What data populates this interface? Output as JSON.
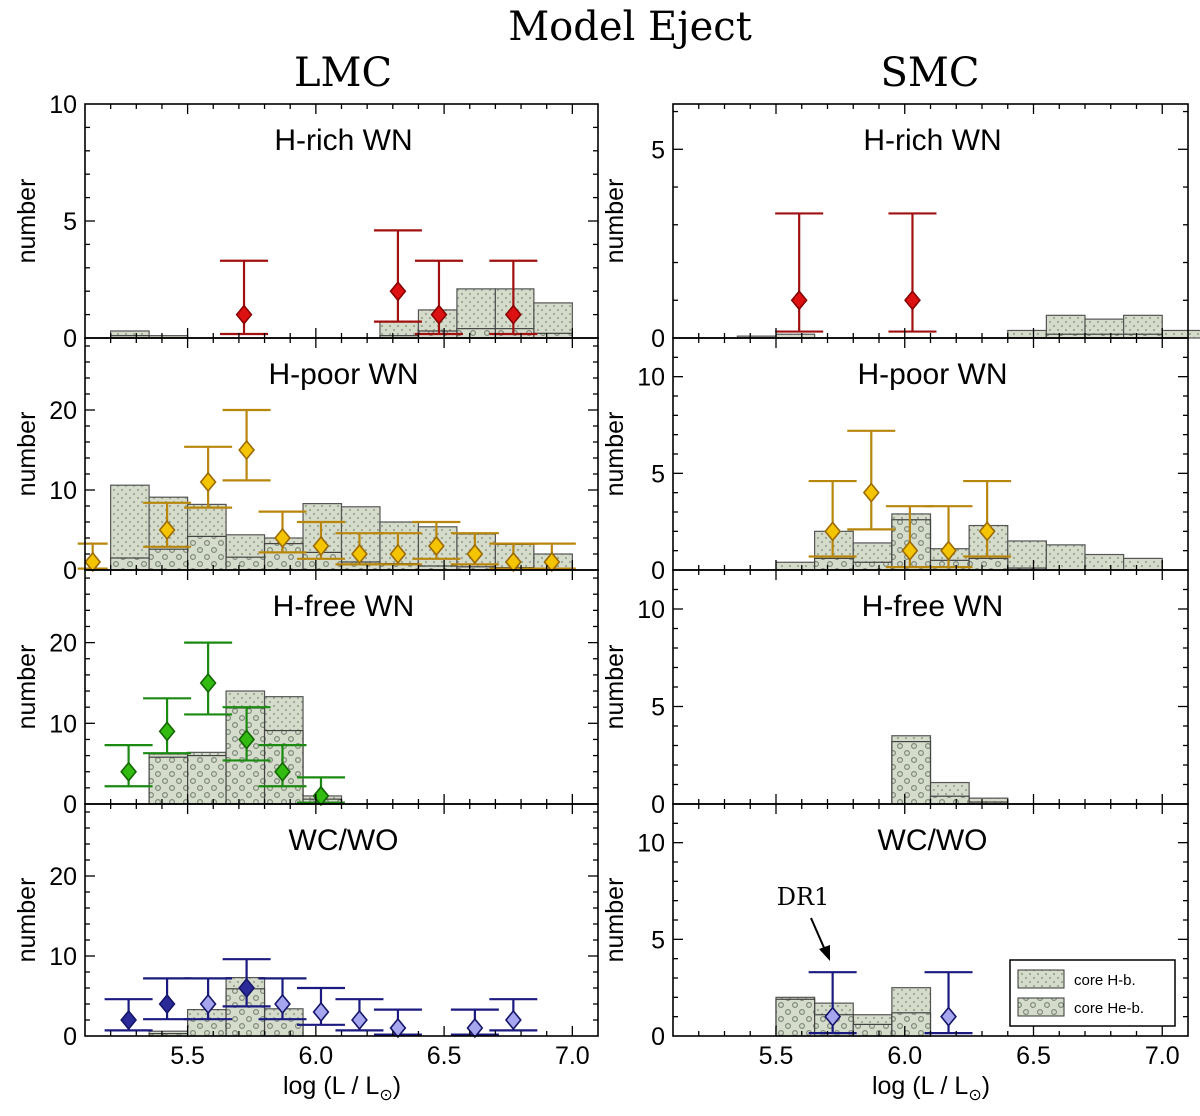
{
  "figure": {
    "title": "Model Eject",
    "column_titles": [
      "LMC",
      "SMC"
    ],
    "xlabel": "log (L / L",
    "xlabel_sub": "⊙",
    "xlabel_end": ")",
    "ylabel": "number",
    "legend": [
      "core H-b.",
      "core He-b."
    ],
    "annotation": "DR1"
  },
  "colors": {
    "hrich": "#dd1111",
    "hrich_edge": "#880000",
    "hrich_err": "#a01010",
    "hpoor": "#f5c400",
    "hpoor_edge": "#9a6a00",
    "hpoor_err": "#b8860b",
    "hfree": "#33bb11",
    "hfree_edge": "#116600",
    "hfree_err": "#1a8a10",
    "wc_dark": "#2a2a99",
    "wc_light": "#a6a6ee",
    "wc_edge": "#15156a",
    "wc_err": "#1a1a80",
    "hist_fill": "#d6dccb",
    "hist_dots": "#8a9a88"
  },
  "chart_data": [
    {
      "type": "bar",
      "galaxy": "LMC",
      "panel": "H-rich WN",
      "title": "H-rich WN",
      "xlim": [
        5.1,
        7.1
      ],
      "ylim": [
        0,
        10
      ],
      "yticks": [
        0,
        5,
        10
      ],
      "xticks": [
        5.5,
        6.0,
        6.5,
        7.0
      ],
      "xticklabels": [
        "5.5",
        "6.0",
        "6.5",
        "7.0"
      ],
      "bin_width": 0.15,
      "hist_H": [
        [
          5.2,
          0.3
        ],
        [
          5.35,
          0.1
        ],
        [
          6.25,
          0.7
        ],
        [
          6.4,
          1.2
        ],
        [
          6.55,
          2.1
        ],
        [
          6.7,
          2.1
        ],
        [
          6.85,
          1.5
        ]
      ],
      "hist_He": [
        [
          5.2,
          0.1
        ],
        [
          6.25,
          0.1
        ],
        [
          6.4,
          0.3
        ],
        [
          6.55,
          0.4
        ],
        [
          6.7,
          0.4
        ],
        [
          6.85,
          0.2
        ]
      ],
      "points": [
        {
          "x": 5.72,
          "y": 1,
          "lo": 0.17,
          "hi": 3.3,
          "style": "hrich"
        },
        {
          "x": 6.32,
          "y": 2,
          "lo": 0.7,
          "hi": 4.6,
          "style": "hrich"
        },
        {
          "x": 6.48,
          "y": 1,
          "lo": 0.17,
          "hi": 3.3,
          "style": "hrich"
        },
        {
          "x": 6.77,
          "y": 1,
          "lo": 0.17,
          "hi": 3.3,
          "style": "hrich"
        }
      ]
    },
    {
      "type": "bar",
      "galaxy": "SMC",
      "panel": "H-rich WN",
      "title": "H-rich WN",
      "xlim": [
        5.1,
        7.1
      ],
      "ylim": [
        0,
        6.2
      ],
      "yticks": [
        0,
        5
      ],
      "xticks": [
        5.5,
        6.0,
        6.5,
        7.0
      ],
      "xticklabels": [
        "5.5",
        "6.0",
        "6.5",
        "7.0"
      ],
      "bin_width": 0.15,
      "hist_H": [
        [
          5.35,
          0.05
        ],
        [
          5.5,
          0.1
        ],
        [
          6.4,
          0.2
        ],
        [
          6.55,
          0.6
        ],
        [
          6.7,
          0.5
        ],
        [
          6.85,
          0.6
        ],
        [
          7.0,
          0.2
        ]
      ],
      "hist_He": [
        [
          6.55,
          0.1
        ],
        [
          6.7,
          0.1
        ],
        [
          6.85,
          0.1
        ]
      ],
      "points": [
        {
          "x": 5.59,
          "y": 1,
          "lo": 0.17,
          "hi": 3.3,
          "style": "hrich"
        },
        {
          "x": 6.03,
          "y": 1,
          "lo": 0.17,
          "hi": 3.3,
          "style": "hrich"
        }
      ]
    },
    {
      "type": "bar",
      "galaxy": "LMC",
      "panel": "H-poor WN",
      "title": "H-poor WN",
      "xlim": [
        5.1,
        7.1
      ],
      "ylim": [
        0,
        29
      ],
      "yticks": [
        0,
        10,
        20
      ],
      "xticks": [
        5.5,
        6.0,
        6.5,
        7.0
      ],
      "xticklabels": [
        "5.5",
        "6.0",
        "6.5",
        "7.0"
      ],
      "bin_width": 0.15,
      "hist_H": [
        [
          5.2,
          10.6
        ],
        [
          5.35,
          9.1
        ],
        [
          5.5,
          8.2
        ],
        [
          5.65,
          4.4
        ],
        [
          5.8,
          4.0
        ],
        [
          5.95,
          8.3
        ],
        [
          6.1,
          7.9
        ],
        [
          6.25,
          6.0
        ],
        [
          6.4,
          5.4
        ],
        [
          6.55,
          4.5
        ],
        [
          6.7,
          3.2
        ],
        [
          6.85,
          2.0
        ]
      ],
      "hist_He": [
        [
          5.2,
          1.5
        ],
        [
          5.35,
          2.6
        ],
        [
          5.5,
          4.2
        ],
        [
          5.65,
          1.6
        ],
        [
          5.8,
          3.3
        ],
        [
          5.95,
          2.2
        ],
        [
          6.1,
          1.0
        ],
        [
          6.25,
          0.8
        ],
        [
          6.4,
          0.5
        ],
        [
          6.55,
          0.4
        ],
        [
          6.7,
          0.3
        ],
        [
          6.85,
          0.2
        ]
      ],
      "points": [
        {
          "x": 5.13,
          "y": 1,
          "lo": 0.17,
          "hi": 3.3,
          "style": "hpoor",
          "capw": 30
        },
        {
          "x": 5.42,
          "y": 5,
          "lo": 2.9,
          "hi": 8.4,
          "style": "hpoor"
        },
        {
          "x": 5.58,
          "y": 11,
          "lo": 7.8,
          "hi": 15.4,
          "style": "hpoor"
        },
        {
          "x": 5.73,
          "y": 15,
          "lo": 11.2,
          "hi": 20.0,
          "style": "hpoor"
        },
        {
          "x": 5.87,
          "y": 4,
          "lo": 2.2,
          "hi": 7.3,
          "style": "hpoor"
        },
        {
          "x": 6.02,
          "y": 3,
          "lo": 1.4,
          "hi": 6.0,
          "style": "hpoor"
        },
        {
          "x": 6.17,
          "y": 2,
          "lo": 0.7,
          "hi": 4.6,
          "style": "hpoor"
        },
        {
          "x": 6.32,
          "y": 2,
          "lo": 0.7,
          "hi": 4.6,
          "style": "hpoor"
        },
        {
          "x": 6.47,
          "y": 3,
          "lo": 1.4,
          "hi": 6.0,
          "style": "hpoor"
        },
        {
          "x": 6.62,
          "y": 2,
          "lo": 0.7,
          "hi": 4.6,
          "style": "hpoor"
        },
        {
          "x": 6.77,
          "y": 1,
          "lo": 0.17,
          "hi": 3.3,
          "style": "hpoor"
        },
        {
          "x": 6.92,
          "y": 1,
          "lo": 0.17,
          "hi": 3.3,
          "style": "hpoor"
        }
      ]
    },
    {
      "type": "bar",
      "galaxy": "SMC",
      "panel": "H-poor WN",
      "title": "H-poor WN",
      "xlim": [
        5.1,
        7.1
      ],
      "ylim": [
        0,
        12
      ],
      "yticks": [
        0,
        5,
        10
      ],
      "xticks": [
        5.5,
        6.0,
        6.5,
        7.0
      ],
      "xticklabels": [
        "5.5",
        "6.0",
        "6.5",
        "7.0"
      ],
      "bin_width": 0.15,
      "hist_H": [
        [
          5.5,
          0.4
        ],
        [
          5.65,
          2.0
        ],
        [
          5.8,
          1.4
        ],
        [
          5.95,
          2.9
        ],
        [
          6.1,
          1.1
        ],
        [
          6.25,
          2.3
        ],
        [
          6.4,
          1.5
        ],
        [
          6.55,
          1.3
        ],
        [
          6.7,
          0.8
        ],
        [
          6.85,
          0.6
        ]
      ],
      "hist_He": [
        [
          5.65,
          0.6
        ],
        [
          5.8,
          0.4
        ],
        [
          5.95,
          2.6
        ],
        [
          6.1,
          0.5
        ],
        [
          6.25,
          0.6
        ],
        [
          6.4,
          0.1
        ]
      ],
      "points": [
        {
          "x": 5.72,
          "y": 2,
          "lo": 0.7,
          "hi": 4.6,
          "style": "hpoor"
        },
        {
          "x": 5.87,
          "y": 4,
          "lo": 2.1,
          "hi": 7.2,
          "style": "hpoor"
        },
        {
          "x": 6.02,
          "y": 1,
          "lo": 0.15,
          "hi": 3.3,
          "style": "hpoor"
        },
        {
          "x": 6.17,
          "y": 1,
          "lo": 0.15,
          "hi": 3.3,
          "style": "hpoor"
        },
        {
          "x": 6.32,
          "y": 2,
          "lo": 0.7,
          "hi": 4.6,
          "style": "hpoor"
        }
      ]
    },
    {
      "type": "bar",
      "galaxy": "LMC",
      "panel": "H-free WN",
      "title": "H-free WN",
      "xlim": [
        5.1,
        7.1
      ],
      "ylim": [
        0,
        29
      ],
      "yticks": [
        0,
        10,
        20
      ],
      "xticks": [
        5.5,
        6.0,
        6.5,
        7.0
      ],
      "xticklabels": [
        "5.5",
        "6.0",
        "6.5",
        "7.0"
      ],
      "bin_width": 0.15,
      "hist_H": [
        [
          5.35,
          6.2
        ],
        [
          5.5,
          6.4
        ],
        [
          5.65,
          14.0
        ],
        [
          5.8,
          13.3
        ],
        [
          5.95,
          1.0
        ]
      ],
      "hist_He": [
        [
          5.35,
          5.8
        ],
        [
          5.5,
          6.0
        ],
        [
          5.65,
          11.9
        ],
        [
          5.8,
          9.1
        ],
        [
          5.95,
          0.6
        ]
      ],
      "points": [
        {
          "x": 5.27,
          "y": 4,
          "lo": 2.2,
          "hi": 7.3,
          "style": "hfree"
        },
        {
          "x": 5.42,
          "y": 9,
          "lo": 6.3,
          "hi": 13.1,
          "style": "hfree"
        },
        {
          "x": 5.58,
          "y": 15,
          "lo": 11.1,
          "hi": 20.0,
          "style": "hfree"
        },
        {
          "x": 5.73,
          "y": 8,
          "lo": 5.4,
          "hi": 12.0,
          "style": "hfree"
        },
        {
          "x": 5.87,
          "y": 4,
          "lo": 2.2,
          "hi": 7.3,
          "style": "hfree"
        },
        {
          "x": 6.02,
          "y": 1,
          "lo": 0.17,
          "hi": 3.3,
          "style": "hfree"
        }
      ]
    },
    {
      "type": "bar",
      "galaxy": "SMC",
      "panel": "H-free WN",
      "title": "H-free WN",
      "xlim": [
        5.1,
        7.1
      ],
      "ylim": [
        0,
        12
      ],
      "yticks": [
        0,
        5,
        10
      ],
      "xticks": [
        5.5,
        6.0,
        6.5,
        7.0
      ],
      "xticklabels": [
        "5.5",
        "6.0",
        "6.5",
        "7.0"
      ],
      "bin_width": 0.15,
      "hist_H": [
        [
          5.95,
          3.5
        ],
        [
          6.1,
          1.1
        ],
        [
          6.25,
          0.3
        ]
      ],
      "hist_He": [
        [
          5.95,
          3.2
        ],
        [
          6.1,
          0.4
        ],
        [
          6.25,
          0.1
        ]
      ],
      "points": []
    },
    {
      "type": "bar",
      "galaxy": "LMC",
      "panel": "WC/WO",
      "title": "WC/WO",
      "xlim": [
        5.1,
        7.1
      ],
      "ylim": [
        0,
        29
      ],
      "yticks": [
        0,
        10,
        20
      ],
      "xticks": [
        5.5,
        6.0,
        6.5,
        7.0
      ],
      "xticklabels": [
        "5.5",
        "6.0",
        "6.5",
        "7.0"
      ],
      "bin_width": 0.15,
      "hist_H": [
        [
          5.35,
          0.6
        ],
        [
          5.5,
          3.3
        ],
        [
          5.65,
          7.3
        ],
        [
          5.8,
          3.4
        ]
      ],
      "hist_He": [
        [
          5.35,
          0.3
        ],
        [
          5.5,
          2.1
        ],
        [
          5.65,
          5.9
        ],
        [
          5.8,
          2.1
        ]
      ],
      "points": [
        {
          "x": 5.27,
          "y": 2,
          "lo": 0.7,
          "hi": 4.6,
          "style": "wc_dark"
        },
        {
          "x": 5.42,
          "y": 4,
          "lo": 2.1,
          "hi": 7.2,
          "style": "wc_dark"
        },
        {
          "x": 5.58,
          "y": 4,
          "lo": 2.1,
          "hi": 7.2,
          "style": "wc_light"
        },
        {
          "x": 5.73,
          "y": 6,
          "lo": 3.7,
          "hi": 9.6,
          "style": "wc_dark"
        },
        {
          "x": 5.87,
          "y": 4,
          "lo": 2.1,
          "hi": 7.2,
          "style": "wc_light"
        },
        {
          "x": 6.02,
          "y": 3,
          "lo": 1.4,
          "hi": 6.0,
          "style": "wc_light"
        },
        {
          "x": 6.17,
          "y": 2,
          "lo": 0.7,
          "hi": 4.6,
          "style": "wc_light"
        },
        {
          "x": 6.32,
          "y": 1,
          "lo": 0.17,
          "hi": 3.3,
          "style": "wc_light"
        },
        {
          "x": 6.62,
          "y": 1,
          "lo": 0.17,
          "hi": 3.3,
          "style": "wc_light"
        },
        {
          "x": 6.77,
          "y": 2,
          "lo": 0.7,
          "hi": 4.6,
          "style": "wc_light"
        }
      ]
    },
    {
      "type": "bar",
      "galaxy": "SMC",
      "panel": "WC/WO",
      "title": "WC/WO",
      "xlim": [
        5.1,
        7.1
      ],
      "ylim": [
        0,
        12
      ],
      "yticks": [
        0,
        5,
        10
      ],
      "xticks": [
        5.5,
        6.0,
        6.5,
        7.0
      ],
      "xticklabels": [
        "5.5",
        "6.0",
        "6.5",
        "7.0"
      ],
      "bin_width": 0.15,
      "hist_H": [
        [
          5.5,
          2.0
        ],
        [
          5.65,
          1.7
        ],
        [
          5.8,
          1.1
        ],
        [
          5.95,
          2.5
        ]
      ],
      "hist_He": [
        [
          5.5,
          1.9
        ],
        [
          5.65,
          1.1
        ],
        [
          5.8,
          0.6
        ],
        [
          5.95,
          1.2
        ]
      ],
      "points": [
        {
          "x": 5.72,
          "y": 1,
          "lo": 0.15,
          "hi": 3.3,
          "style": "wc_light"
        },
        {
          "x": 6.17,
          "y": 1,
          "lo": 0.15,
          "hi": 3.3,
          "style": "wc_light"
        }
      ]
    }
  ]
}
